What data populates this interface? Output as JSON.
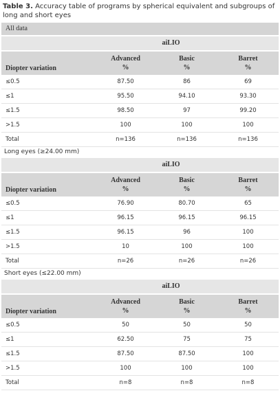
{
  "caption": {
    "label": "Table 3.",
    "text": "Accuracy table of programs by spherical equivalent and subgroups of long and short eyes"
  },
  "sections": [
    {
      "title": "All data",
      "group": "aiLIO",
      "columns": [
        {
          "name": "Diopter variation"
        },
        {
          "name": "Advanced",
          "unit": "%"
        },
        {
          "name": "Basic",
          "unit": "%"
        },
        {
          "name": "Barret",
          "unit": "%"
        }
      ],
      "rows": [
        [
          "≤0.5",
          "87.50",
          "86",
          "69"
        ],
        [
          "≤1",
          "95.50",
          "94.10",
          "93.30"
        ],
        [
          "≤1.5",
          "98.50",
          "97",
          "99.20"
        ],
        [
          ">1.5",
          "100",
          "100",
          "100"
        ],
        [
          "Total",
          "n=136",
          "n=136",
          "n=136"
        ]
      ]
    },
    {
      "title": "Long eyes (≥24.00 mm)",
      "group": "aiLIO",
      "columns": [
        {
          "name": "Diopter variation"
        },
        {
          "name": "Advanced",
          "unit": "%"
        },
        {
          "name": "Basic",
          "unit": "%"
        },
        {
          "name": "Barret",
          "unit": "%"
        }
      ],
      "rows": [
        [
          "≤0.5",
          "76.90",
          "80.70",
          "65"
        ],
        [
          "≤1",
          "96.15",
          "96.15",
          "96.15"
        ],
        [
          "≤1.5",
          "96.15",
          "96",
          "100"
        ],
        [
          ">1.5",
          "10",
          "100",
          "100"
        ],
        [
          "Total",
          "n=26",
          "n=26",
          "n=26"
        ]
      ]
    },
    {
      "title": "Short eyes (≤22.00 mm)",
      "group": "aiLIO",
      "columns": [
        {
          "name": "Diopter variation"
        },
        {
          "name": "Advanced",
          "unit": "%"
        },
        {
          "name": "Basic",
          "unit": "%"
        },
        {
          "name": "Barret",
          "unit": "%"
        }
      ],
      "rows": [
        [
          "≤0.5",
          "50",
          "50",
          "50"
        ],
        [
          "≤1",
          "62.50",
          "75",
          "75"
        ],
        [
          "≤1.5",
          "87.50",
          "87.50",
          "100"
        ],
        [
          ">1.5",
          "100",
          "100",
          "100"
        ],
        [
          "Total",
          "n=8",
          "n=8",
          "n=8"
        ]
      ]
    }
  ]
}
